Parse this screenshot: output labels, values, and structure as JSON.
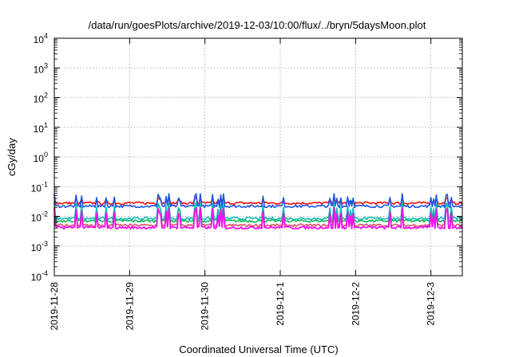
{
  "chart_data": {
    "type": "line",
    "title": "/data/run/goesPlots/archive/2019-12-03/10:00/flux/../bryn/5daysMoon.plot",
    "xlabel": "Coordinated Universal Time (UTC)",
    "ylabel": "cGy/day",
    "y_scale": "log",
    "ylim_exponents": [
      -4,
      4
    ],
    "ytick_base": "10",
    "ytick_exponents": [
      "-4",
      "-3",
      "-2",
      "-1",
      "0",
      "1",
      "2",
      "3",
      "4"
    ],
    "xlim": [
      "2019-11-28T00:00",
      "2019-12-03T10:00"
    ],
    "xtick_labels": [
      "2019-11-28",
      "2019-11-29",
      "2019-11-30",
      "2019-12-1",
      "2019-12-2",
      "2019-12-3"
    ],
    "grid": true,
    "colors": {
      "red": "#ee1111",
      "blue": "#1a55e8",
      "green": "#11bb55",
      "cyan": "#11bbbb",
      "pink": "#e05070",
      "magenta": "#ee11ee",
      "purple": "#5533aa"
    },
    "series": [
      {
        "color": "#ee1111",
        "baseline": 0.028,
        "spike_peak": 0.045
      },
      {
        "color": "#1a55e8",
        "baseline": 0.022,
        "spike_peak": 0.06
      },
      {
        "color": "#11bb55",
        "baseline": 0.007,
        "spike_peak": 0.03
      },
      {
        "color": "#11bbbb",
        "baseline": 0.0085,
        "spike_peak": 0.03
      },
      {
        "color": "#e05070",
        "baseline": 0.005,
        "spike_peak": 0.02
      },
      {
        "color": "#ee11ee",
        "baseline": 0.0042,
        "spike_peak": 0.02
      }
    ]
  }
}
